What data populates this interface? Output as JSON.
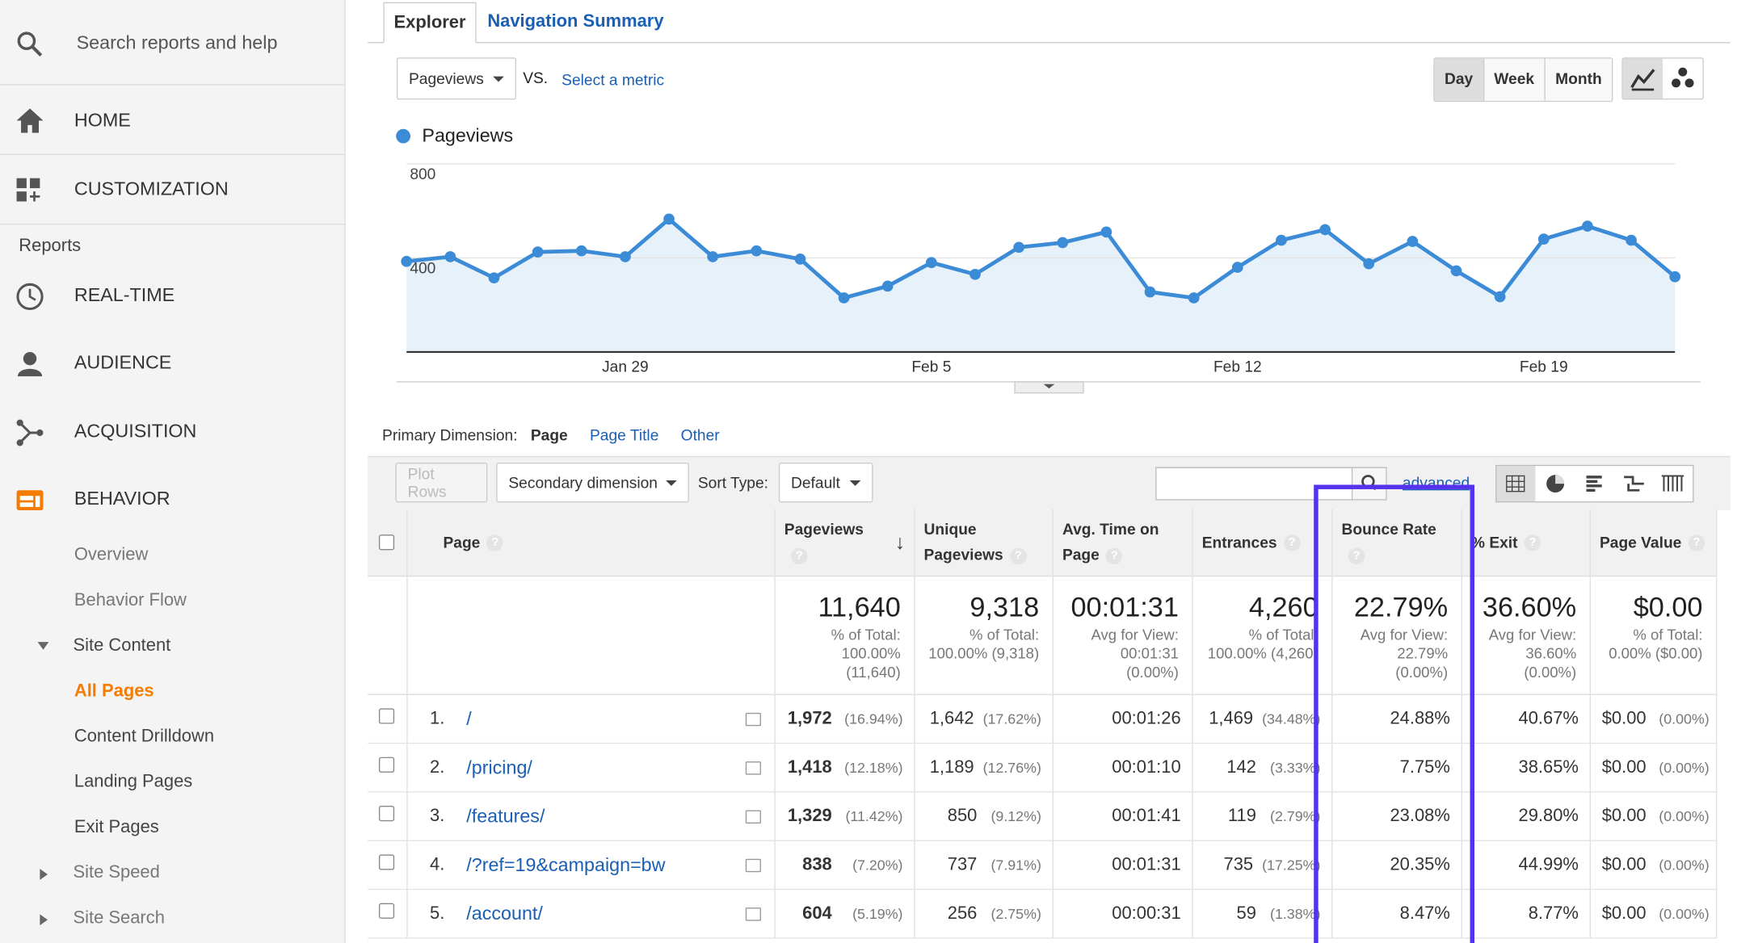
{
  "sidebar": {
    "search": "Search reports and help",
    "top_items": [
      "HOME",
      "CUSTOMIZATION"
    ],
    "section": "Reports",
    "items": [
      "REAL-TIME",
      "AUDIENCE",
      "ACQUISITION",
      "BEHAVIOR"
    ],
    "behavior_items": [
      "Overview",
      "Behavior Flow",
      "Site Content",
      "All Pages",
      "Content Drilldown",
      "Landing Pages",
      "Exit Pages",
      "Site Speed",
      "Site Search"
    ]
  },
  "tabs": [
    "Explorer",
    "Navigation Summary"
  ],
  "controls": {
    "metric": "Pageviews",
    "vs": "VS.",
    "select": "Select a metric",
    "periods": [
      "Day",
      "Week",
      "Month"
    ]
  },
  "chart_data": {
    "type": "line",
    "categories": [
      null,
      null,
      null,
      null,
      null,
      "Jan 29",
      null,
      null,
      null,
      null,
      null,
      null,
      "Feb 5",
      null,
      null,
      null,
      null,
      null,
      null,
      "Feb 12",
      null,
      null,
      null,
      null,
      null,
      null,
      "Feb 19",
      null,
      null,
      null
    ],
    "series": [
      {
        "name": "Pageviews",
        "color": "#3b8bd6",
        "values": [
          385,
          405,
          315,
          425,
          430,
          405,
          565,
          405,
          430,
          395,
          230,
          280,
          380,
          330,
          445,
          465,
          510,
          255,
          230,
          360,
          475,
          520,
          375,
          470,
          345,
          235,
          480,
          535,
          475,
          320
        ]
      }
    ],
    "ylim": [
      0,
      800
    ],
    "yticks": [
      400,
      800
    ],
    "grid": true
  },
  "dimension": {
    "label": "Primary Dimension:",
    "options": [
      "Page",
      "Page Title",
      "Other"
    ]
  },
  "toolbar": {
    "plot_rows": "Plot Rows",
    "secondary": "Secondary dimension",
    "sort_label": "Sort Type:",
    "sort": "Default",
    "advanced": "advanced"
  },
  "table": {
    "headers": [
      "Page",
      "Pageviews",
      "Unique Pageviews",
      "Avg. Time on Page",
      "Entrances",
      "Bounce Rate",
      "% Exit",
      "Page Value"
    ],
    "totals": [
      [
        "11,640",
        "% of Total:",
        "100.00%",
        "(11,640)"
      ],
      [
        "9,318",
        "% of Total:",
        "100.00% (9,318)"
      ],
      [
        "00:01:31",
        "Avg for View:",
        "00:01:31",
        "(0.00%)"
      ],
      [
        "4,260",
        "% of Total:",
        "100.00% (4,260)"
      ],
      [
        "22.79%",
        "Avg for View:",
        "22.79%",
        "(0.00%)"
      ],
      [
        "36.60%",
        "Avg for View:",
        "36.60%",
        "(0.00%)"
      ],
      [
        "$0.00",
        "% of Total:",
        "0.00% ($0.00)"
      ]
    ],
    "rows": [
      [
        "1.",
        "/",
        "1,972",
        "(16.94%)",
        "1,642",
        "(17.62%)",
        "00:01:26",
        "1,469",
        "(34.48%)",
        "24.88%",
        "40.67%",
        "$0.00",
        "(0.00%)"
      ],
      [
        "2.",
        "/pricing/",
        "1,418",
        "(12.18%)",
        "1,189",
        "(12.76%)",
        "00:01:10",
        "142",
        "(3.33%)",
        "7.75%",
        "38.65%",
        "$0.00",
        "(0.00%)"
      ],
      [
        "3.",
        "/features/",
        "1,329",
        "(11.42%)",
        "850",
        "(9.12%)",
        "00:01:41",
        "119",
        "(2.79%)",
        "23.08%",
        "29.80%",
        "$0.00",
        "(0.00%)"
      ],
      [
        "4.",
        "/?ref=19&campaign=bw",
        "838",
        "(7.20%)",
        "737",
        "(7.91%)",
        "00:01:31",
        "735",
        "(17.25%)",
        "20.35%",
        "44.99%",
        "$0.00",
        "(0.00%)"
      ],
      [
        "5.",
        "/account/",
        "604",
        "(5.19%)",
        "256",
        "(2.75%)",
        "00:00:31",
        "59",
        "(1.38%)",
        "8.47%",
        "8.77%",
        "$0.00",
        "(0.00%)"
      ]
    ]
  }
}
